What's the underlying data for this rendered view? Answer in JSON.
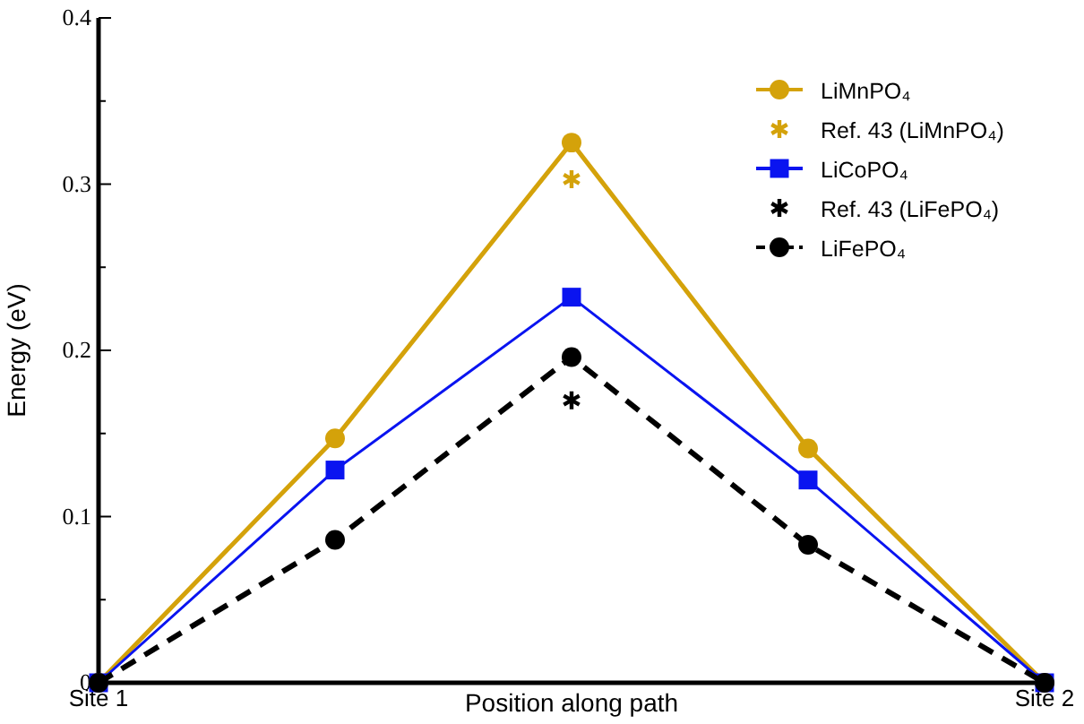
{
  "chart_data": {
    "type": "line",
    "xlabel": "Position along path",
    "ylabel": "Energy (eV)",
    "categories": [
      "Site 1",
      null,
      null,
      null,
      "Site 2"
    ],
    "ylim": [
      0,
      0.4
    ],
    "yticks": [
      0,
      {
        "value": 0.05,
        "label": null
      },
      0.1,
      {
        "value": 0.15,
        "label": null
      },
      0.2,
      {
        "value": 0.25,
        "label": null
      },
      0.3,
      {
        "value": 0.35,
        "label": null
      },
      0.4
    ],
    "legend": "top right",
    "grid": false,
    "series": [
      {
        "name": "LiMnPO₄",
        "color": "#d4a20a",
        "marker": "circle",
        "line_style": "solid",
        "values": [
          0,
          0.147,
          0.325,
          0.141,
          0
        ]
      },
      {
        "name": "Ref. 43 (LiMnPO₄)",
        "type": "scatter",
        "color": "#d4a20a",
        "marker": "cross",
        "values": [
          null,
          null,
          0.303,
          null,
          null
        ]
      },
      {
        "name": "LiCoPO₄",
        "color": "#0a14f0",
        "marker": "square",
        "line_style": "solid",
        "values": [
          0,
          0.128,
          0.232,
          0.122,
          0
        ]
      },
      {
        "name": "Ref. 43 (LiFePO₄)",
        "type": "scatter",
        "color": "#000000",
        "marker": "cross",
        "values": [
          null,
          null,
          0.17,
          null,
          null
        ]
      },
      {
        "name": "LiFePO₄",
        "color": "#000000",
        "marker": "circle",
        "line_style": "dashed",
        "values": [
          0,
          0.086,
          0.196,
          0.083,
          0
        ]
      }
    ]
  }
}
